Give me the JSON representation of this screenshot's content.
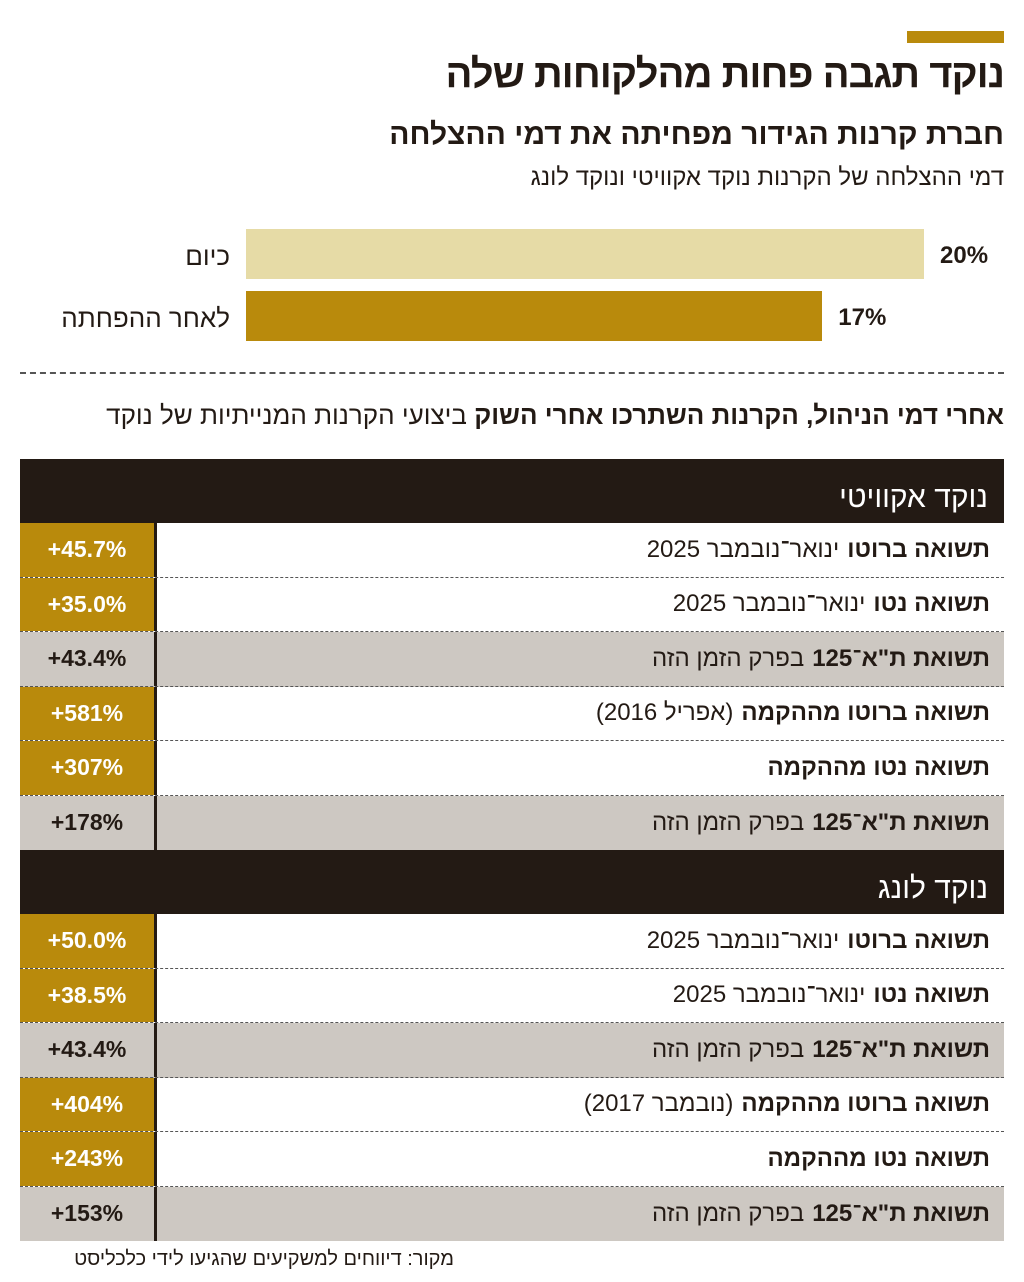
{
  "title": "נוקד תגבה פחות מהלקוחות שלה",
  "subtitle": "חברת קרנות הגידור מפחיתה את דמי ההצלחה",
  "subnote": "דמי ההצלחה של הקרנות נוקד אקוויטי ונוקד לונג",
  "colors": {
    "dark": "#231a14",
    "gold": "#b98a0c",
    "light_gold": "#e6dba6",
    "grey": "#cdc8c2"
  },
  "chart_data": {
    "type": "bar",
    "orientation": "horizontal",
    "categories": [
      "כיום",
      "לאחר ההפחתה"
    ],
    "values": [
      20,
      17
    ],
    "value_labels": [
      "20%",
      "17%"
    ],
    "colors": [
      "#e6dba6",
      "#b98a0c"
    ]
  },
  "table": {
    "title_bold": "אחרי דמי הניהול, הקרנות השתרכו אחרי השוק",
    "title_rest": "ביצועי הקרנות המנייתיות של נוקד",
    "sections": [
      {
        "name": "נוקד אקוויטי",
        "rows": [
          {
            "bold": "תשואה ברוטו",
            "rest": "ינואר־נובמבר 2025",
            "value": "+45.7%",
            "style": "gold"
          },
          {
            "bold": "תשואה נטו",
            "rest": "ינואר־נובמבר 2025",
            "value": "+35.0%",
            "style": "gold"
          },
          {
            "bold": "תשואת ת\"א־125",
            "rest": "בפרק הזמן הזה",
            "value": "+43.4%",
            "style": "grey"
          },
          {
            "bold": "תשואה ברוטו מההקמה",
            "rest": "(אפריל 2016)",
            "value": "+581%",
            "style": "gold"
          },
          {
            "bold": "תשואה נטו מההקמה",
            "rest": "",
            "value": "+307%",
            "style": "gold"
          },
          {
            "bold": "תשואת ת\"א־125",
            "rest": "בפרק הזמן הזה",
            "value": "+178%",
            "style": "grey"
          }
        ]
      },
      {
        "name": "נוקד לונג",
        "rows": [
          {
            "bold": "תשואה ברוטו",
            "rest": "ינואר־נובמבר 2025",
            "value": "+50.0%",
            "style": "gold"
          },
          {
            "bold": "תשואה נטו",
            "rest": "ינואר־נובמבר 2025",
            "value": "+38.5%",
            "style": "gold"
          },
          {
            "bold": "תשואת ת\"א־125",
            "rest": "בפרק הזמן הזה",
            "value": "+43.4%",
            "style": "grey"
          },
          {
            "bold": "תשואה ברוטו מההקמה",
            "rest": "(נובמבר 2017)",
            "value": "+404%",
            "style": "gold"
          },
          {
            "bold": "תשואה נטו מההקמה",
            "rest": "",
            "value": "+243%",
            "style": "gold"
          },
          {
            "bold": "תשואת ת\"א־125",
            "rest": "בפרק הזמן הזה",
            "value": "+153%",
            "style": "grey"
          }
        ]
      }
    ]
  },
  "source": "מקור: דיווחים למשקיעים שהגיעו לידי כלכליסט"
}
